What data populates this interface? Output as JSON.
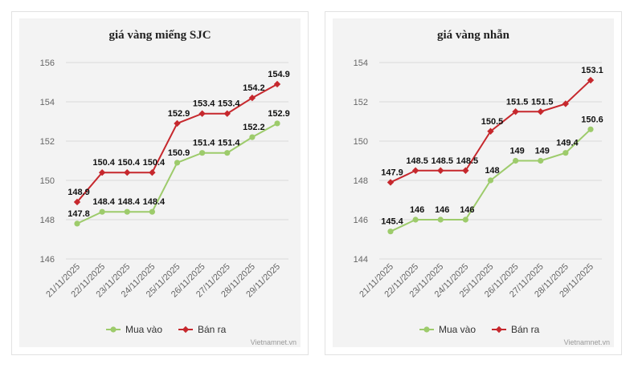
{
  "colors": {
    "buy": "#9dcb6b",
    "sell": "#c6282d",
    "grid": "#d9d9d9",
    "background": "#f3f3f3"
  },
  "chart_data": [
    {
      "type": "line",
      "title": "giá vàng miếng SJC",
      "categories": [
        "21/11/2025",
        "22/11/2025",
        "23/11/2025",
        "24/11/2025",
        "25/11/2025",
        "26/11/2025",
        "27/11/2025",
        "28/11/2025",
        "29/11/2025"
      ],
      "series": [
        {
          "name": "Mua vào",
          "color": "#9dcb6b",
          "values": [
            147.8,
            148.4,
            148.4,
            148.4,
            150.9,
            151.4,
            151.4,
            152.2,
            152.9
          ],
          "labels": [
            "147.8",
            "148.4",
            "148.4",
            "148.4",
            "150.9",
            "151.4",
            "151.4",
            "152.2",
            "152.9"
          ]
        },
        {
          "name": "Bán ra",
          "color": "#c6282d",
          "values": [
            148.9,
            150.4,
            150.4,
            150.4,
            152.9,
            153.4,
            153.4,
            154.2,
            154.9
          ],
          "labels": [
            "148.9",
            "150.4",
            "150.4",
            "150.4",
            "152.9",
            "153.4",
            "153.4",
            "154.2",
            "154.9"
          ]
        }
      ],
      "ylim": [
        146,
        156
      ],
      "yticks": [
        "146",
        "148",
        "150",
        "152",
        "154",
        "156"
      ],
      "grid": true,
      "legend": "bottom",
      "credit": "Vietnamnet.vn"
    },
    {
      "type": "line",
      "title": "giá vàng nhẫn",
      "categories": [
        "21/11/2025",
        "22/11/2025",
        "23/11/2025",
        "24/11/2025",
        "25/11/2025",
        "26/11/2025",
        "27/11/2025",
        "28/11/2025",
        "29/11/2025"
      ],
      "series": [
        {
          "name": "Mua vào",
          "color": "#9dcb6b",
          "values": [
            145.4,
            146,
            146,
            146,
            148,
            149,
            149,
            149.4,
            150.6
          ],
          "labels": [
            "145.4",
            "146",
            "146",
            "146",
            "148",
            "149",
            "149",
            "149.4",
            "150.6"
          ]
        },
        {
          "name": "Bán ra",
          "color": "#c6282d",
          "values": [
            147.9,
            148.5,
            148.5,
            148.5,
            150.5,
            151.5,
            151.5,
            151.9,
            153.1
          ],
          "labels": [
            "147.9",
            "148.5",
            "148.5",
            "148.5",
            "150.5",
            "151.5",
            "151.5",
            "",
            "153.1"
          ]
        }
      ],
      "ylim": [
        144,
        154
      ],
      "yticks": [
        "144",
        "146",
        "148",
        "150",
        "152",
        "154"
      ],
      "grid": true,
      "legend": "bottom",
      "credit": "Vietnamnet.vn"
    }
  ]
}
